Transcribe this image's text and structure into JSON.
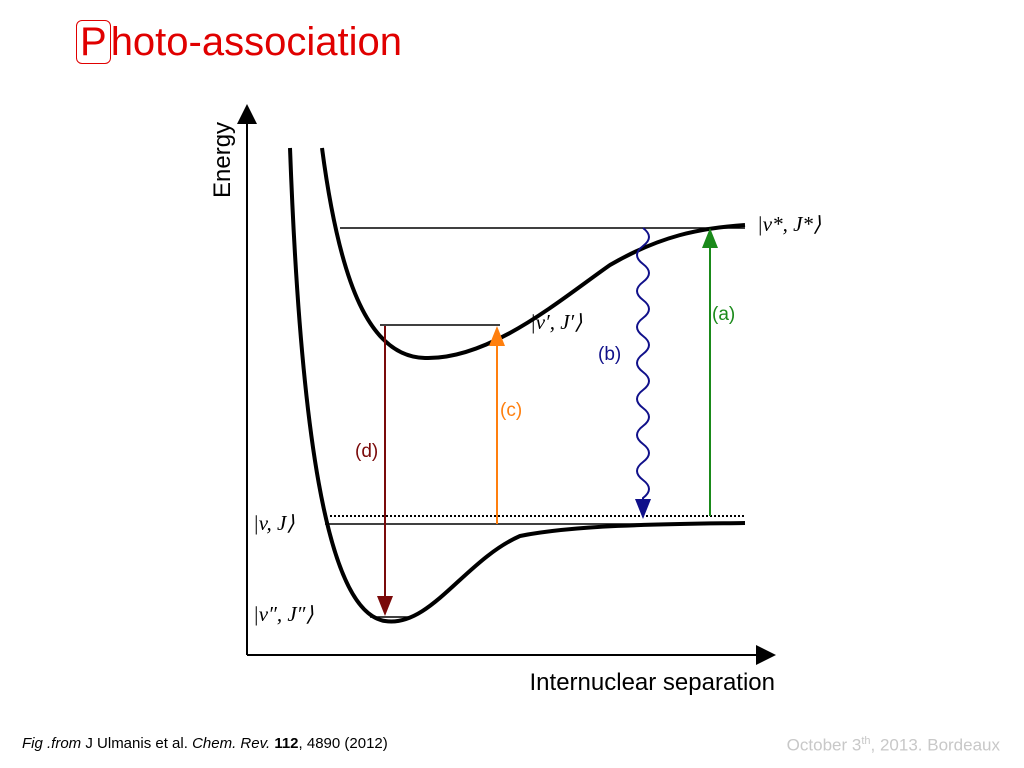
{
  "title": {
    "initial": "P",
    "rest": "hoto-association"
  },
  "diagram": {
    "y_axis_label": "Energy",
    "x_axis_label": "Internuclear separation",
    "states": [
      "|v*, J*⟩",
      "|v′, J′⟩",
      "|v, J⟩",
      "|v″, J″⟩"
    ],
    "transitions": [
      "(a)",
      "(b)",
      "(c)",
      "(d)"
    ]
  },
  "caption": {
    "prefix": "Fig .from",
    "authors": "J Ulmanis et al.",
    "journal": "Chem. Rev.",
    "volume": "112",
    "pages": ", 4890 (2012)"
  },
  "footer": {
    "date": "October 3",
    "superscript": "th",
    "rest": ", 2013. Bordeaux"
  }
}
